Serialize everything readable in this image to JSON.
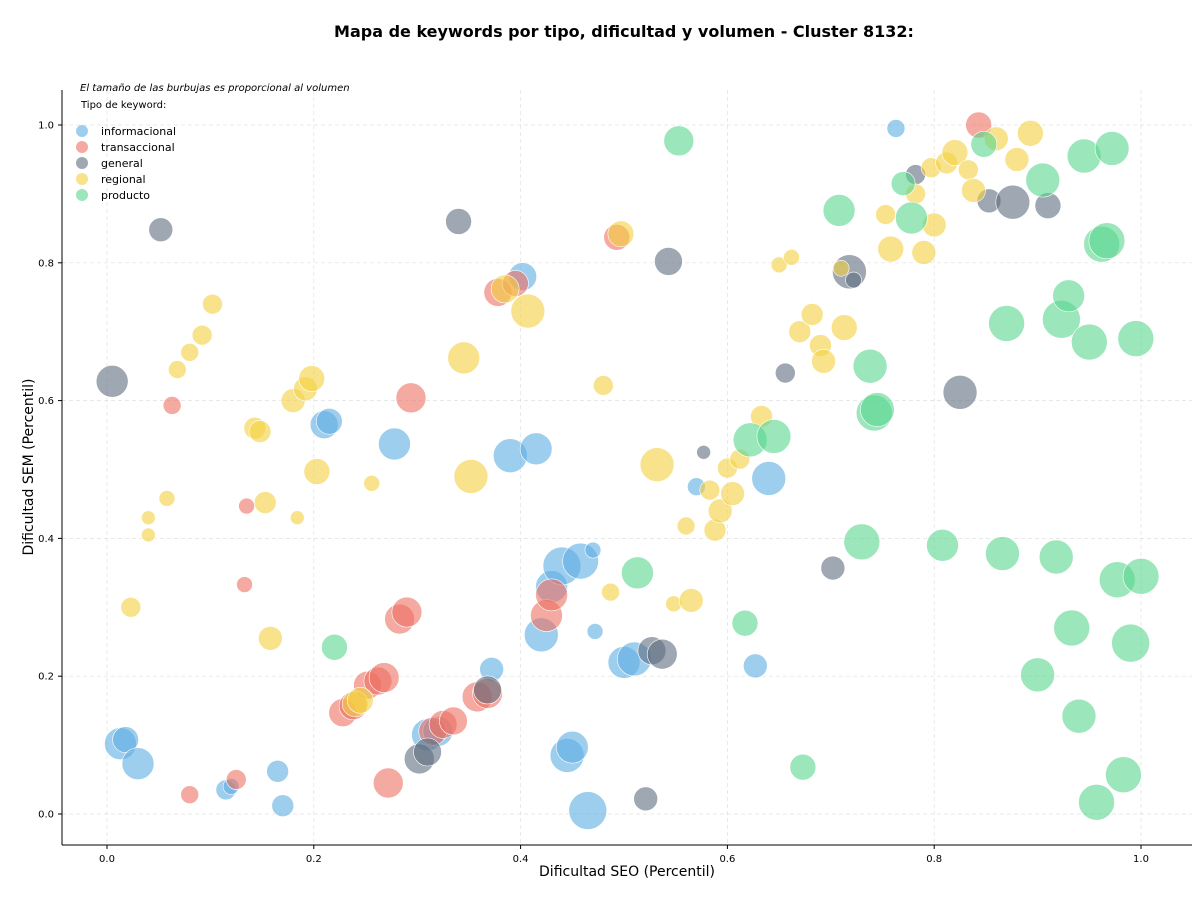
{
  "chart_data": {
    "type": "scatter",
    "title": "Mapa de keywords por tipo, dificultad y volumen - Cluster 8132:",
    "xlabel": "Dificultad SEO (Percentil)",
    "ylabel": "Dificultad SEM (Percentil)",
    "xlim": [
      -0.045,
      1.045
    ],
    "ylim": [
      -0.045,
      1.045
    ],
    "xticks": [
      0.0,
      0.2,
      0.4,
      0.6,
      0.8,
      1.0
    ],
    "yticks": [
      0.0,
      0.2,
      0.4,
      0.6,
      0.8,
      1.0
    ],
    "xtick_labels": [
      "0.0",
      "0.2",
      "0.4",
      "0.6",
      "0.8",
      "1.0"
    ],
    "ytick_labels": [
      "0.0",
      "0.2",
      "0.4",
      "0.6",
      "0.8",
      "1.0"
    ],
    "grid": true,
    "note": "El tamaño de las burbujas es proporcional al volumen",
    "legend_title": "Tipo de keyword:",
    "legend_position": "top-left",
    "series": [
      {
        "name": "informacional",
        "color": "#5DADE2",
        "points": [
          {
            "x": 0.013,
            "y": 0.102,
            "size": 16
          },
          {
            "x": 0.018,
            "y": 0.108,
            "size": 13
          },
          {
            "x": 0.03,
            "y": 0.073,
            "size": 16
          },
          {
            "x": 0.115,
            "y": 0.035,
            "size": 10
          },
          {
            "x": 0.12,
            "y": 0.04,
            "size": 8
          },
          {
            "x": 0.165,
            "y": 0.062,
            "size": 11
          },
          {
            "x": 0.17,
            "y": 0.012,
            "size": 11
          },
          {
            "x": 0.21,
            "y": 0.565,
            "size": 14
          },
          {
            "x": 0.215,
            "y": 0.57,
            "size": 13
          },
          {
            "x": 0.278,
            "y": 0.537,
            "size": 16
          },
          {
            "x": 0.31,
            "y": 0.115,
            "size": 16
          },
          {
            "x": 0.32,
            "y": 0.12,
            "size": 15
          },
          {
            "x": 0.372,
            "y": 0.21,
            "size": 12
          },
          {
            "x": 0.39,
            "y": 0.52,
            "size": 17
          },
          {
            "x": 0.402,
            "y": 0.78,
            "size": 14
          },
          {
            "x": 0.415,
            "y": 0.53,
            "size": 16
          },
          {
            "x": 0.42,
            "y": 0.26,
            "size": 17
          },
          {
            "x": 0.43,
            "y": 0.33,
            "size": 16
          },
          {
            "x": 0.44,
            "y": 0.36,
            "size": 19
          },
          {
            "x": 0.445,
            "y": 0.085,
            "size": 17
          },
          {
            "x": 0.45,
            "y": 0.097,
            "size": 16
          },
          {
            "x": 0.458,
            "y": 0.367,
            "size": 18
          },
          {
            "x": 0.465,
            "y": 0.005,
            "size": 19
          },
          {
            "x": 0.47,
            "y": 0.383,
            "size": 8
          },
          {
            "x": 0.472,
            "y": 0.265,
            "size": 8
          },
          {
            "x": 0.5,
            "y": 0.22,
            "size": 16
          },
          {
            "x": 0.51,
            "y": 0.225,
            "size": 17
          },
          {
            "x": 0.57,
            "y": 0.475,
            "size": 9
          },
          {
            "x": 0.627,
            "y": 0.215,
            "size": 12
          },
          {
            "x": 0.64,
            "y": 0.487,
            "size": 17
          },
          {
            "x": 0.763,
            "y": 0.995,
            "size": 9
          }
        ]
      },
      {
        "name": "transaccional",
        "color": "#EC7063",
        "points": [
          {
            "x": 0.063,
            "y": 0.593,
            "size": 9
          },
          {
            "x": 0.08,
            "y": 0.028,
            "size": 9
          },
          {
            "x": 0.125,
            "y": 0.05,
            "size": 10
          },
          {
            "x": 0.133,
            "y": 0.333,
            "size": 8
          },
          {
            "x": 0.135,
            "y": 0.447,
            "size": 8
          },
          {
            "x": 0.228,
            "y": 0.147,
            "size": 14
          },
          {
            "x": 0.238,
            "y": 0.157,
            "size": 14
          },
          {
            "x": 0.252,
            "y": 0.187,
            "size": 14
          },
          {
            "x": 0.262,
            "y": 0.193,
            "size": 14
          },
          {
            "x": 0.268,
            "y": 0.198,
            "size": 15
          },
          {
            "x": 0.272,
            "y": 0.045,
            "size": 15
          },
          {
            "x": 0.283,
            "y": 0.283,
            "size": 15
          },
          {
            "x": 0.29,
            "y": 0.293,
            "size": 15
          },
          {
            "x": 0.294,
            "y": 0.604,
            "size": 15
          },
          {
            "x": 0.315,
            "y": 0.12,
            "size": 14
          },
          {
            "x": 0.325,
            "y": 0.13,
            "size": 14
          },
          {
            "x": 0.335,
            "y": 0.135,
            "size": 14
          },
          {
            "x": 0.358,
            "y": 0.17,
            "size": 15
          },
          {
            "x": 0.368,
            "y": 0.175,
            "size": 15
          },
          {
            "x": 0.378,
            "y": 0.757,
            "size": 14
          },
          {
            "x": 0.395,
            "y": 0.77,
            "size": 13
          },
          {
            "x": 0.425,
            "y": 0.288,
            "size": 16
          },
          {
            "x": 0.43,
            "y": 0.318,
            "size": 16
          },
          {
            "x": 0.493,
            "y": 0.837,
            "size": 13
          },
          {
            "x": 0.843,
            "y": 1.0,
            "size": 13
          }
        ]
      },
      {
        "name": "general",
        "color": "#5D6D7E",
        "points": [
          {
            "x": 0.005,
            "y": 0.628,
            "size": 16
          },
          {
            "x": 0.052,
            "y": 0.848,
            "size": 12
          },
          {
            "x": 0.302,
            "y": 0.08,
            "size": 15
          },
          {
            "x": 0.31,
            "y": 0.09,
            "size": 14
          },
          {
            "x": 0.34,
            "y": 0.86,
            "size": 13
          },
          {
            "x": 0.368,
            "y": 0.18,
            "size": 14
          },
          {
            "x": 0.521,
            "y": 0.022,
            "size": 12
          },
          {
            "x": 0.527,
            "y": 0.237,
            "size": 14
          },
          {
            "x": 0.537,
            "y": 0.232,
            "size": 15
          },
          {
            "x": 0.543,
            "y": 0.802,
            "size": 14
          },
          {
            "x": 0.577,
            "y": 0.525,
            "size": 7
          },
          {
            "x": 0.656,
            "y": 0.64,
            "size": 10
          },
          {
            "x": 0.702,
            "y": 0.357,
            "size": 12
          },
          {
            "x": 0.718,
            "y": 0.787,
            "size": 17
          },
          {
            "x": 0.722,
            "y": 0.775,
            "size": 8
          },
          {
            "x": 0.782,
            "y": 0.928,
            "size": 10
          },
          {
            "x": 0.825,
            "y": 0.612,
            "size": 17
          },
          {
            "x": 0.853,
            "y": 0.89,
            "size": 12
          },
          {
            "x": 0.876,
            "y": 0.888,
            "size": 17
          },
          {
            "x": 0.91,
            "y": 0.883,
            "size": 13
          }
        ]
      },
      {
        "name": "regional",
        "color": "#F4D03F",
        "points": [
          {
            "x": 0.023,
            "y": 0.3,
            "size": 10
          },
          {
            "x": 0.04,
            "y": 0.43,
            "size": 7
          },
          {
            "x": 0.04,
            "y": 0.405,
            "size": 7
          },
          {
            "x": 0.058,
            "y": 0.458,
            "size": 8
          },
          {
            "x": 0.068,
            "y": 0.645,
            "size": 9
          },
          {
            "x": 0.08,
            "y": 0.67,
            "size": 9
          },
          {
            "x": 0.092,
            "y": 0.695,
            "size": 10
          },
          {
            "x": 0.102,
            "y": 0.74,
            "size": 10
          },
          {
            "x": 0.143,
            "y": 0.56,
            "size": 11
          },
          {
            "x": 0.148,
            "y": 0.555,
            "size": 11
          },
          {
            "x": 0.153,
            "y": 0.452,
            "size": 11
          },
          {
            "x": 0.158,
            "y": 0.255,
            "size": 12
          },
          {
            "x": 0.18,
            "y": 0.6,
            "size": 12
          },
          {
            "x": 0.184,
            "y": 0.43,
            "size": 7
          },
          {
            "x": 0.192,
            "y": 0.617,
            "size": 12
          },
          {
            "x": 0.198,
            "y": 0.632,
            "size": 13
          },
          {
            "x": 0.203,
            "y": 0.497,
            "size": 13
          },
          {
            "x": 0.24,
            "y": 0.16,
            "size": 13
          },
          {
            "x": 0.245,
            "y": 0.165,
            "size": 13
          },
          {
            "x": 0.256,
            "y": 0.48,
            "size": 8
          },
          {
            "x": 0.345,
            "y": 0.662,
            "size": 16
          },
          {
            "x": 0.352,
            "y": 0.49,
            "size": 17
          },
          {
            "x": 0.385,
            "y": 0.762,
            "size": 14
          },
          {
            "x": 0.407,
            "y": 0.73,
            "size": 17
          },
          {
            "x": 0.48,
            "y": 0.622,
            "size": 10
          },
          {
            "x": 0.487,
            "y": 0.322,
            "size": 9
          },
          {
            "x": 0.497,
            "y": 0.842,
            "size": 13
          },
          {
            "x": 0.532,
            "y": 0.507,
            "size": 17
          },
          {
            "x": 0.548,
            "y": 0.305,
            "size": 8
          },
          {
            "x": 0.56,
            "y": 0.418,
            "size": 9
          },
          {
            "x": 0.565,
            "y": 0.31,
            "size": 12
          },
          {
            "x": 0.583,
            "y": 0.47,
            "size": 10
          },
          {
            "x": 0.588,
            "y": 0.412,
            "size": 11
          },
          {
            "x": 0.593,
            "y": 0.44,
            "size": 12
          },
          {
            "x": 0.6,
            "y": 0.502,
            "size": 10
          },
          {
            "x": 0.605,
            "y": 0.465,
            "size": 12
          },
          {
            "x": 0.612,
            "y": 0.515,
            "size": 10
          },
          {
            "x": 0.633,
            "y": 0.577,
            "size": 11
          },
          {
            "x": 0.65,
            "y": 0.797,
            "size": 8
          },
          {
            "x": 0.662,
            "y": 0.808,
            "size": 8
          },
          {
            "x": 0.67,
            "y": 0.7,
            "size": 11
          },
          {
            "x": 0.682,
            "y": 0.725,
            "size": 11
          },
          {
            "x": 0.69,
            "y": 0.68,
            "size": 11
          },
          {
            "x": 0.693,
            "y": 0.657,
            "size": 12
          },
          {
            "x": 0.71,
            "y": 0.792,
            "size": 8
          },
          {
            "x": 0.713,
            "y": 0.706,
            "size": 13
          },
          {
            "x": 0.753,
            "y": 0.87,
            "size": 10
          },
          {
            "x": 0.758,
            "y": 0.82,
            "size": 13
          },
          {
            "x": 0.782,
            "y": 0.9,
            "size": 10
          },
          {
            "x": 0.79,
            "y": 0.815,
            "size": 12
          },
          {
            "x": 0.797,
            "y": 0.938,
            "size": 10
          },
          {
            "x": 0.8,
            "y": 0.855,
            "size": 12
          },
          {
            "x": 0.812,
            "y": 0.945,
            "size": 11
          },
          {
            "x": 0.82,
            "y": 0.96,
            "size": 13
          },
          {
            "x": 0.833,
            "y": 0.935,
            "size": 10
          },
          {
            "x": 0.838,
            "y": 0.905,
            "size": 12
          },
          {
            "x": 0.86,
            "y": 0.98,
            "size": 12
          },
          {
            "x": 0.88,
            "y": 0.95,
            "size": 12
          },
          {
            "x": 0.893,
            "y": 0.988,
            "size": 13
          }
        ]
      },
      {
        "name": "producto",
        "color": "#58D68D",
        "points": [
          {
            "x": 0.22,
            "y": 0.242,
            "size": 13
          },
          {
            "x": 0.513,
            "y": 0.35,
            "size": 16
          },
          {
            "x": 0.553,
            "y": 0.977,
            "size": 15
          },
          {
            "x": 0.617,
            "y": 0.277,
            "size": 13
          },
          {
            "x": 0.622,
            "y": 0.543,
            "size": 17
          },
          {
            "x": 0.645,
            "y": 0.548,
            "size": 17
          },
          {
            "x": 0.673,
            "y": 0.068,
            "size": 13
          },
          {
            "x": 0.708,
            "y": 0.876,
            "size": 16
          },
          {
            "x": 0.73,
            "y": 0.395,
            "size": 18
          },
          {
            "x": 0.738,
            "y": 0.65,
            "size": 17
          },
          {
            "x": 0.742,
            "y": 0.582,
            "size": 18
          },
          {
            "x": 0.745,
            "y": 0.587,
            "size": 17
          },
          {
            "x": 0.77,
            "y": 0.915,
            "size": 12
          },
          {
            "x": 0.778,
            "y": 0.865,
            "size": 16
          },
          {
            "x": 0.808,
            "y": 0.39,
            "size": 16
          },
          {
            "x": 0.848,
            "y": 0.972,
            "size": 13
          },
          {
            "x": 0.866,
            "y": 0.378,
            "size": 17
          },
          {
            "x": 0.87,
            "y": 0.712,
            "size": 18
          },
          {
            "x": 0.905,
            "y": 0.92,
            "size": 17
          },
          {
            "x": 0.9,
            "y": 0.202,
            "size": 17
          },
          {
            "x": 0.918,
            "y": 0.373,
            "size": 17
          },
          {
            "x": 0.923,
            "y": 0.718,
            "size": 19
          },
          {
            "x": 0.93,
            "y": 0.752,
            "size": 16
          },
          {
            "x": 0.933,
            "y": 0.27,
            "size": 18
          },
          {
            "x": 0.94,
            "y": 0.142,
            "size": 17
          },
          {
            "x": 0.945,
            "y": 0.955,
            "size": 17
          },
          {
            "x": 0.95,
            "y": 0.685,
            "size": 18
          },
          {
            "x": 0.957,
            "y": 0.017,
            "size": 18
          },
          {
            "x": 0.962,
            "y": 0.827,
            "size": 18
          },
          {
            "x": 0.967,
            "y": 0.832,
            "size": 18
          },
          {
            "x": 0.972,
            "y": 0.966,
            "size": 17
          },
          {
            "x": 0.977,
            "y": 0.34,
            "size": 18
          },
          {
            "x": 0.983,
            "y": 0.057,
            "size": 18
          },
          {
            "x": 0.99,
            "y": 0.248,
            "size": 19
          },
          {
            "x": 0.995,
            "y": 0.69,
            "size": 18
          },
          {
            "x": 1.0,
            "y": 0.345,
            "size": 18
          }
        ]
      }
    ]
  }
}
